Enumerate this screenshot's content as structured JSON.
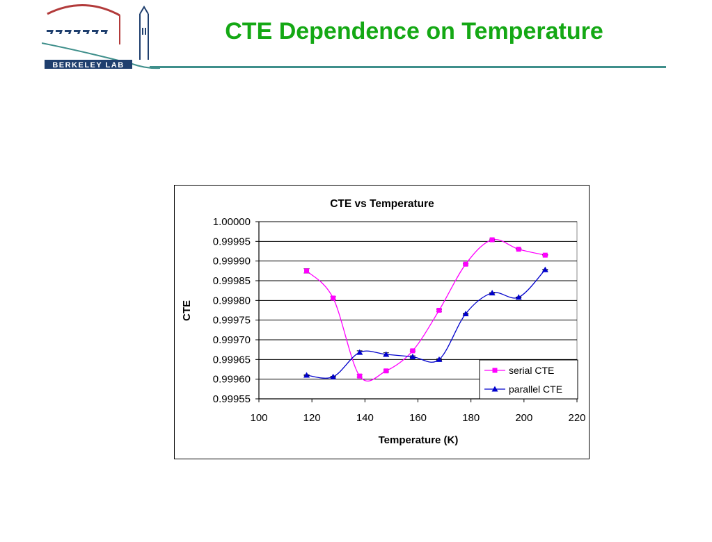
{
  "slide": {
    "title": "CTE Dependence on Temperature",
    "logo_text": "BERKELEY LAB",
    "accent_color": "#14a814",
    "rule_color": "#3f8f8b"
  },
  "chart_data": {
    "type": "line",
    "title": "CTE vs Temperature",
    "xlabel": "Temperature (K)",
    "ylabel": "CTE",
    "xlim": [
      100,
      220
    ],
    "ylim": [
      0.99955,
      1.0
    ],
    "xticks": [
      "100",
      "120",
      "140",
      "160",
      "180",
      "200",
      "220"
    ],
    "yticks": [
      "0.99955",
      "0.99960",
      "0.99965",
      "0.99970",
      "0.99975",
      "0.99980",
      "0.99985",
      "0.99990",
      "0.99995",
      "1.00000"
    ],
    "grid": "horizontal",
    "legend": "bottom-right",
    "series": [
      {
        "name": "serial CTE",
        "color": "#ff00ff",
        "marker": "square",
        "x": [
          118,
          128,
          138,
          148,
          158,
          168,
          178,
          188,
          198,
          208
        ],
        "y": [
          0.999875,
          0.999806,
          0.999608,
          0.999621,
          0.999672,
          0.999775,
          0.999892,
          0.999954,
          0.99993,
          0.999915
        ],
        "err": [
          5.5e-06,
          3.5e-06,
          2.8e-06,
          2.4e-06,
          1.8e-06,
          2.6e-06,
          1.8e-06,
          1.6e-06,
          1.6e-06,
          1.2e-06
        ]
      },
      {
        "name": "parallel CTE",
        "color": "#0000cc",
        "marker": "triangle",
        "x": [
          118,
          128,
          138,
          148,
          158,
          168,
          178,
          188,
          198,
          208
        ],
        "y": [
          0.99961,
          0.999606,
          0.999668,
          0.999663,
          0.999657,
          0.99965,
          0.999766,
          0.999819,
          0.999808,
          0.999878
        ],
        "err": [
          1.2e-06,
          1.4e-06,
          4e-06,
          4e-06,
          2.2e-06,
          1.8e-06,
          8e-07,
          5e-07,
          6e-07,
          4e-07
        ]
      }
    ]
  }
}
